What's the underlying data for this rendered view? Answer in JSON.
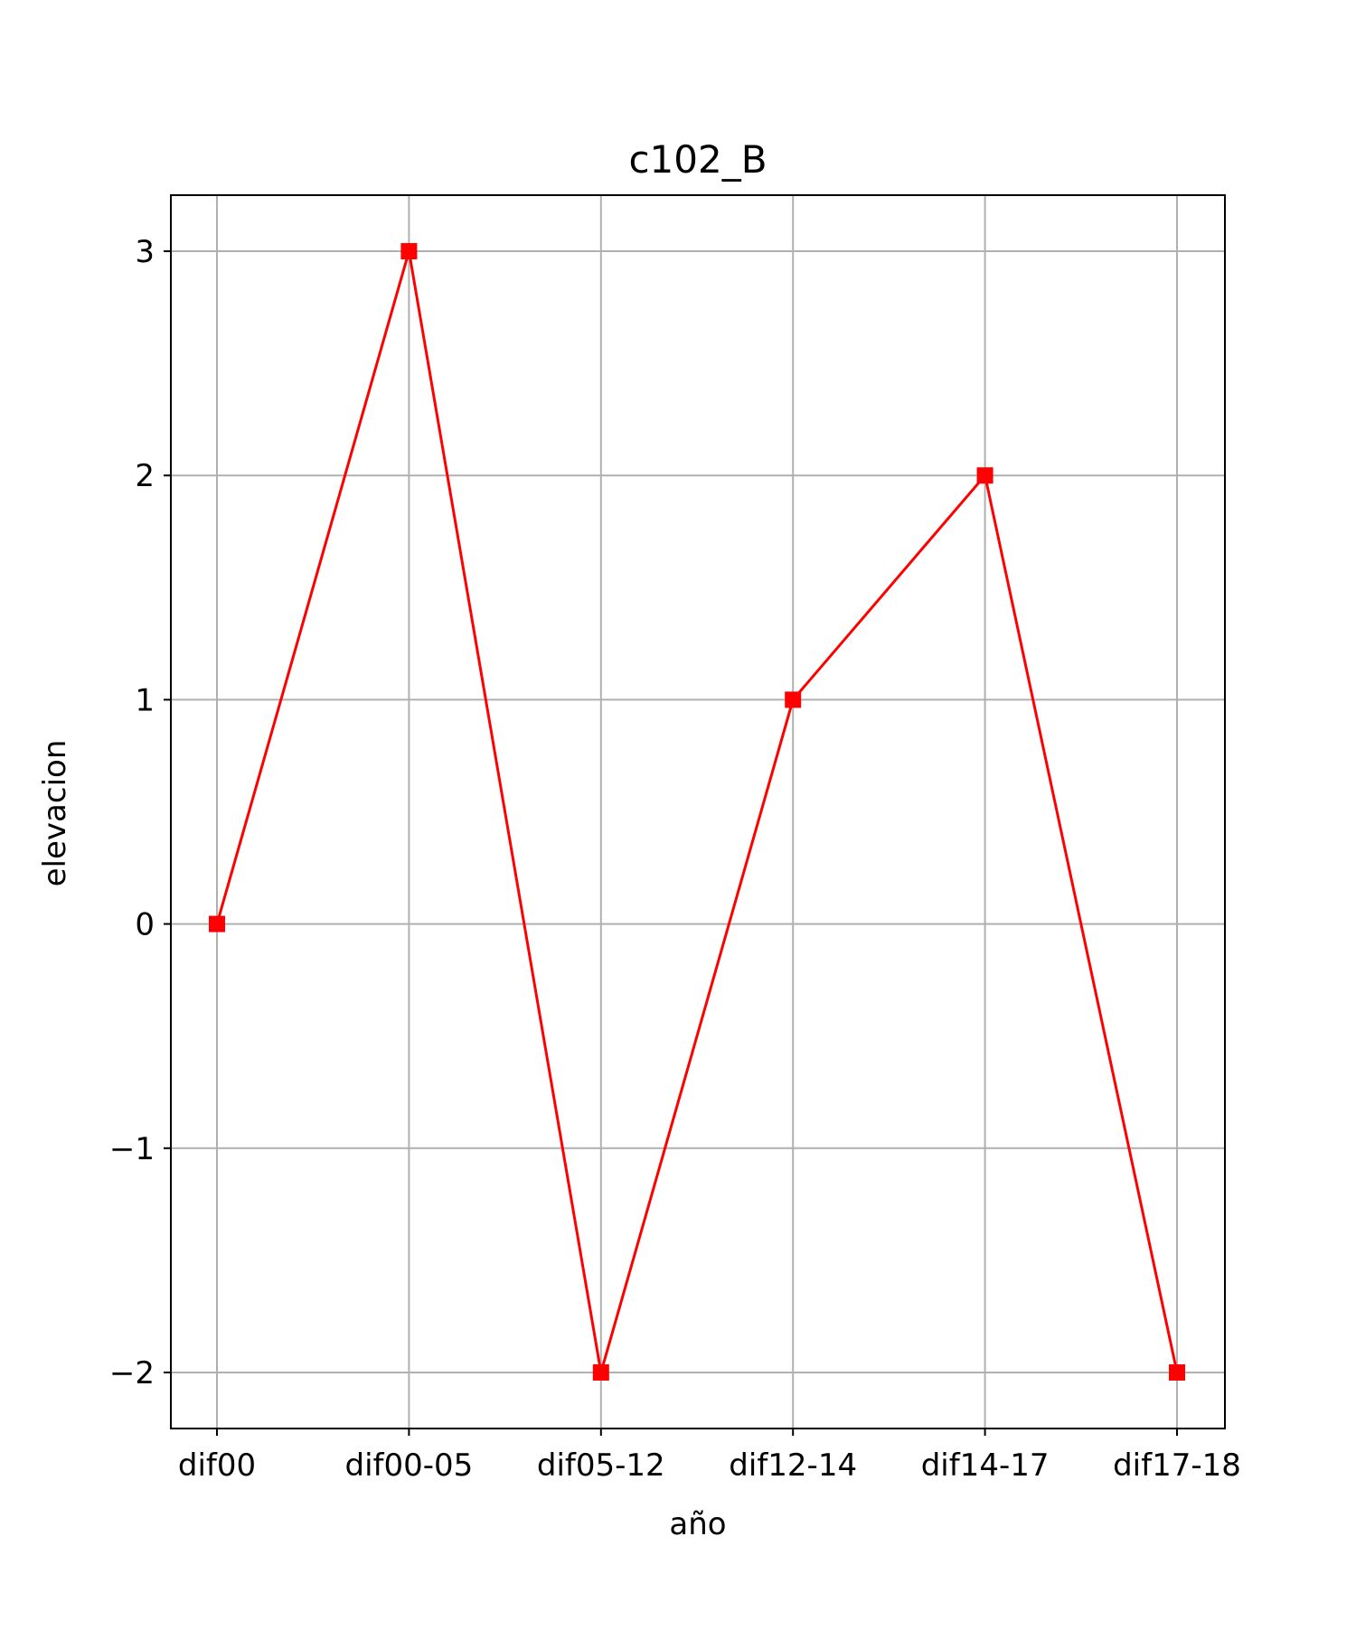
{
  "chart_data": {
    "type": "line",
    "title": "c102_B",
    "xlabel": "año",
    "ylabel": "elevacion",
    "categories": [
      "dif00",
      "dif00-05",
      "dif05-12",
      "dif12-14",
      "dif14-17",
      "dif17-18"
    ],
    "series": [
      {
        "values": [
          0,
          3,
          -2,
          1,
          2,
          -2
        ],
        "color": "#ff0000",
        "marker": "square"
      }
    ],
    "ylim": [
      -2.25,
      3.25
    ],
    "yticks": [
      -2,
      -1,
      0,
      1,
      2,
      3
    ],
    "ytick_labels": [
      "−2",
      "−1",
      "0",
      "1",
      "2",
      "3"
    ],
    "grid": true,
    "grid_color": "#b0b0b0",
    "axis_color": "#000000"
  }
}
